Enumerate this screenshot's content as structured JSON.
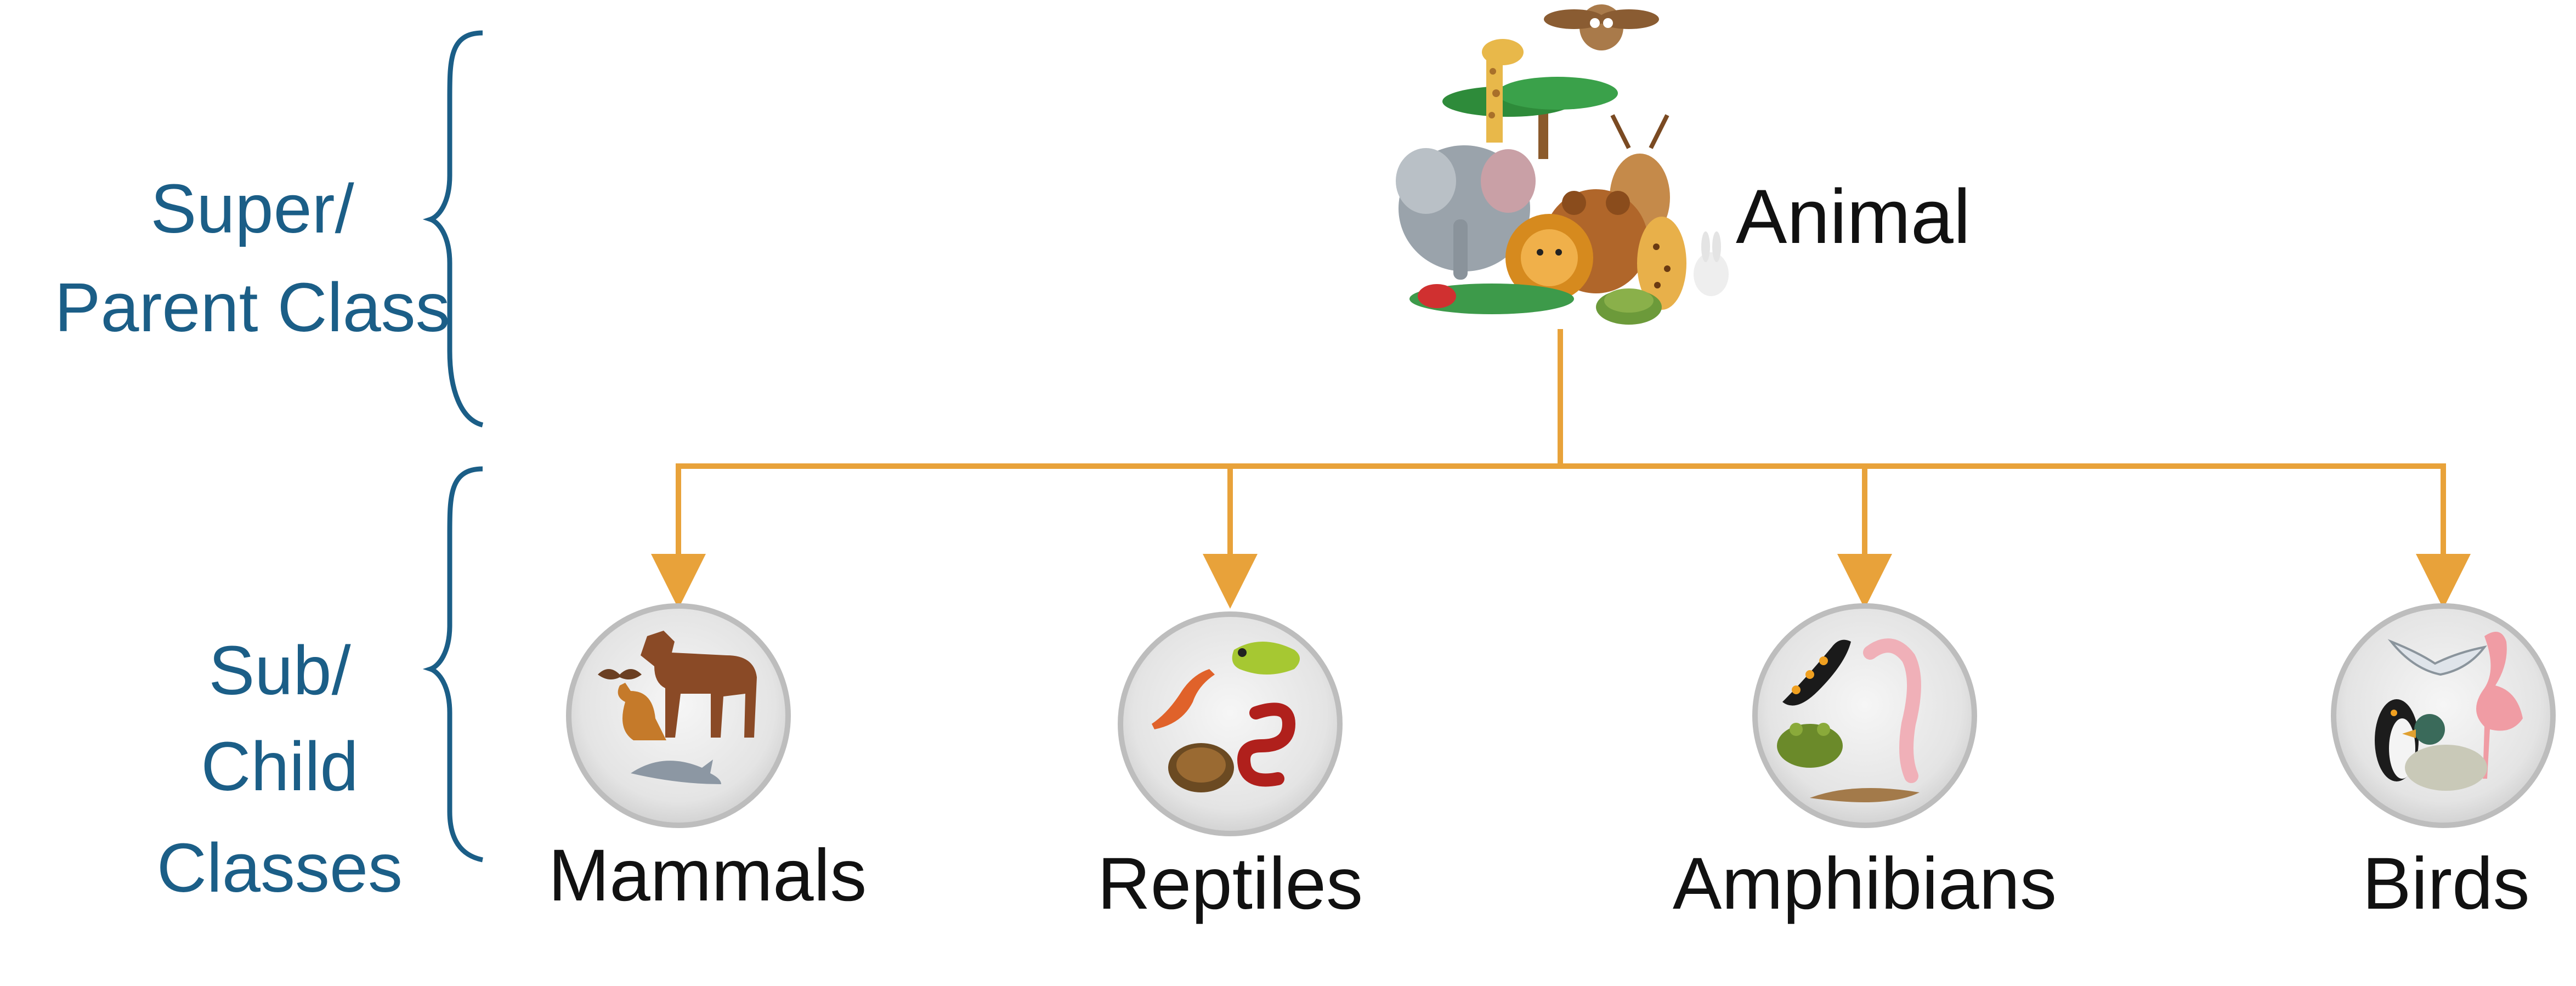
{
  "labels": {
    "super_line1": "Super/",
    "super_line2": "Parent Class",
    "sub_line1": "Sub/",
    "sub_line2": "Child",
    "sub_line3": "Classes"
  },
  "parent": {
    "label": "Animal",
    "icon": "animal-group-icon"
  },
  "children": [
    {
      "label": "Mammals",
      "icon": "mammals-icon"
    },
    {
      "label": "Reptiles",
      "icon": "reptiles-icon"
    },
    {
      "label": "Amphibians",
      "icon": "amphibians-icon"
    },
    {
      "label": "Birds",
      "icon": "birds-icon"
    }
  ],
  "colors": {
    "connector": "#e8a23a",
    "side_label": "#1b5e87",
    "node_label": "#111111",
    "circle_fill": "#e7e7e7",
    "circle_stroke": "#bdbdbd"
  }
}
